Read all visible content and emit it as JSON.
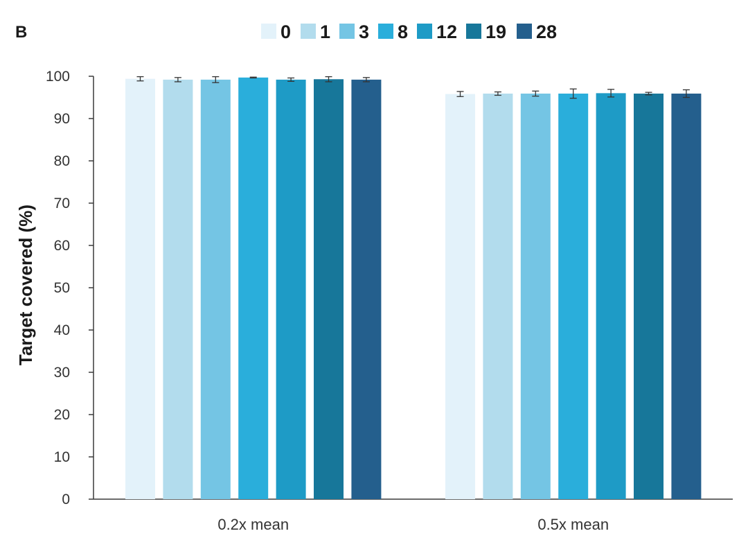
{
  "panel_label": "B",
  "chart_data": {
    "type": "bar",
    "categories": [
      "0.2x mean",
      "0.5x mean"
    ],
    "series": [
      {
        "name": "0",
        "color": "#e3f2fa",
        "values": [
          99.4,
          95.8
        ],
        "errors": [
          0.5,
          0.6
        ]
      },
      {
        "name": "1",
        "color": "#b2dced",
        "values": [
          99.2,
          95.9
        ],
        "errors": [
          0.5,
          0.4
        ]
      },
      {
        "name": "3",
        "color": "#74c5e4",
        "values": [
          99.2,
          95.9
        ],
        "errors": [
          0.7,
          0.6
        ]
      },
      {
        "name": "8",
        "color": "#2aaedb",
        "values": [
          99.7,
          95.9
        ],
        "errors": [
          0.1,
          1.1
        ]
      },
      {
        "name": "12",
        "color": "#1e9bc6",
        "values": [
          99.2,
          96.0
        ],
        "errors": [
          0.4,
          0.9
        ]
      },
      {
        "name": "19",
        "color": "#17779a",
        "values": [
          99.3,
          95.9
        ],
        "errors": [
          0.6,
          0.3
        ]
      },
      {
        "name": "28",
        "color": "#245f8d",
        "values": [
          99.2,
          95.9
        ],
        "errors": [
          0.5,
          0.9
        ]
      }
    ],
    "ylabel": "Target covered (%)",
    "xlabel": "",
    "ylim": [
      0,
      100
    ],
    "yticks": [
      0,
      10,
      20,
      30,
      40,
      50,
      60,
      70,
      80,
      90,
      100
    ],
    "grid": false,
    "legend_position": "top"
  }
}
